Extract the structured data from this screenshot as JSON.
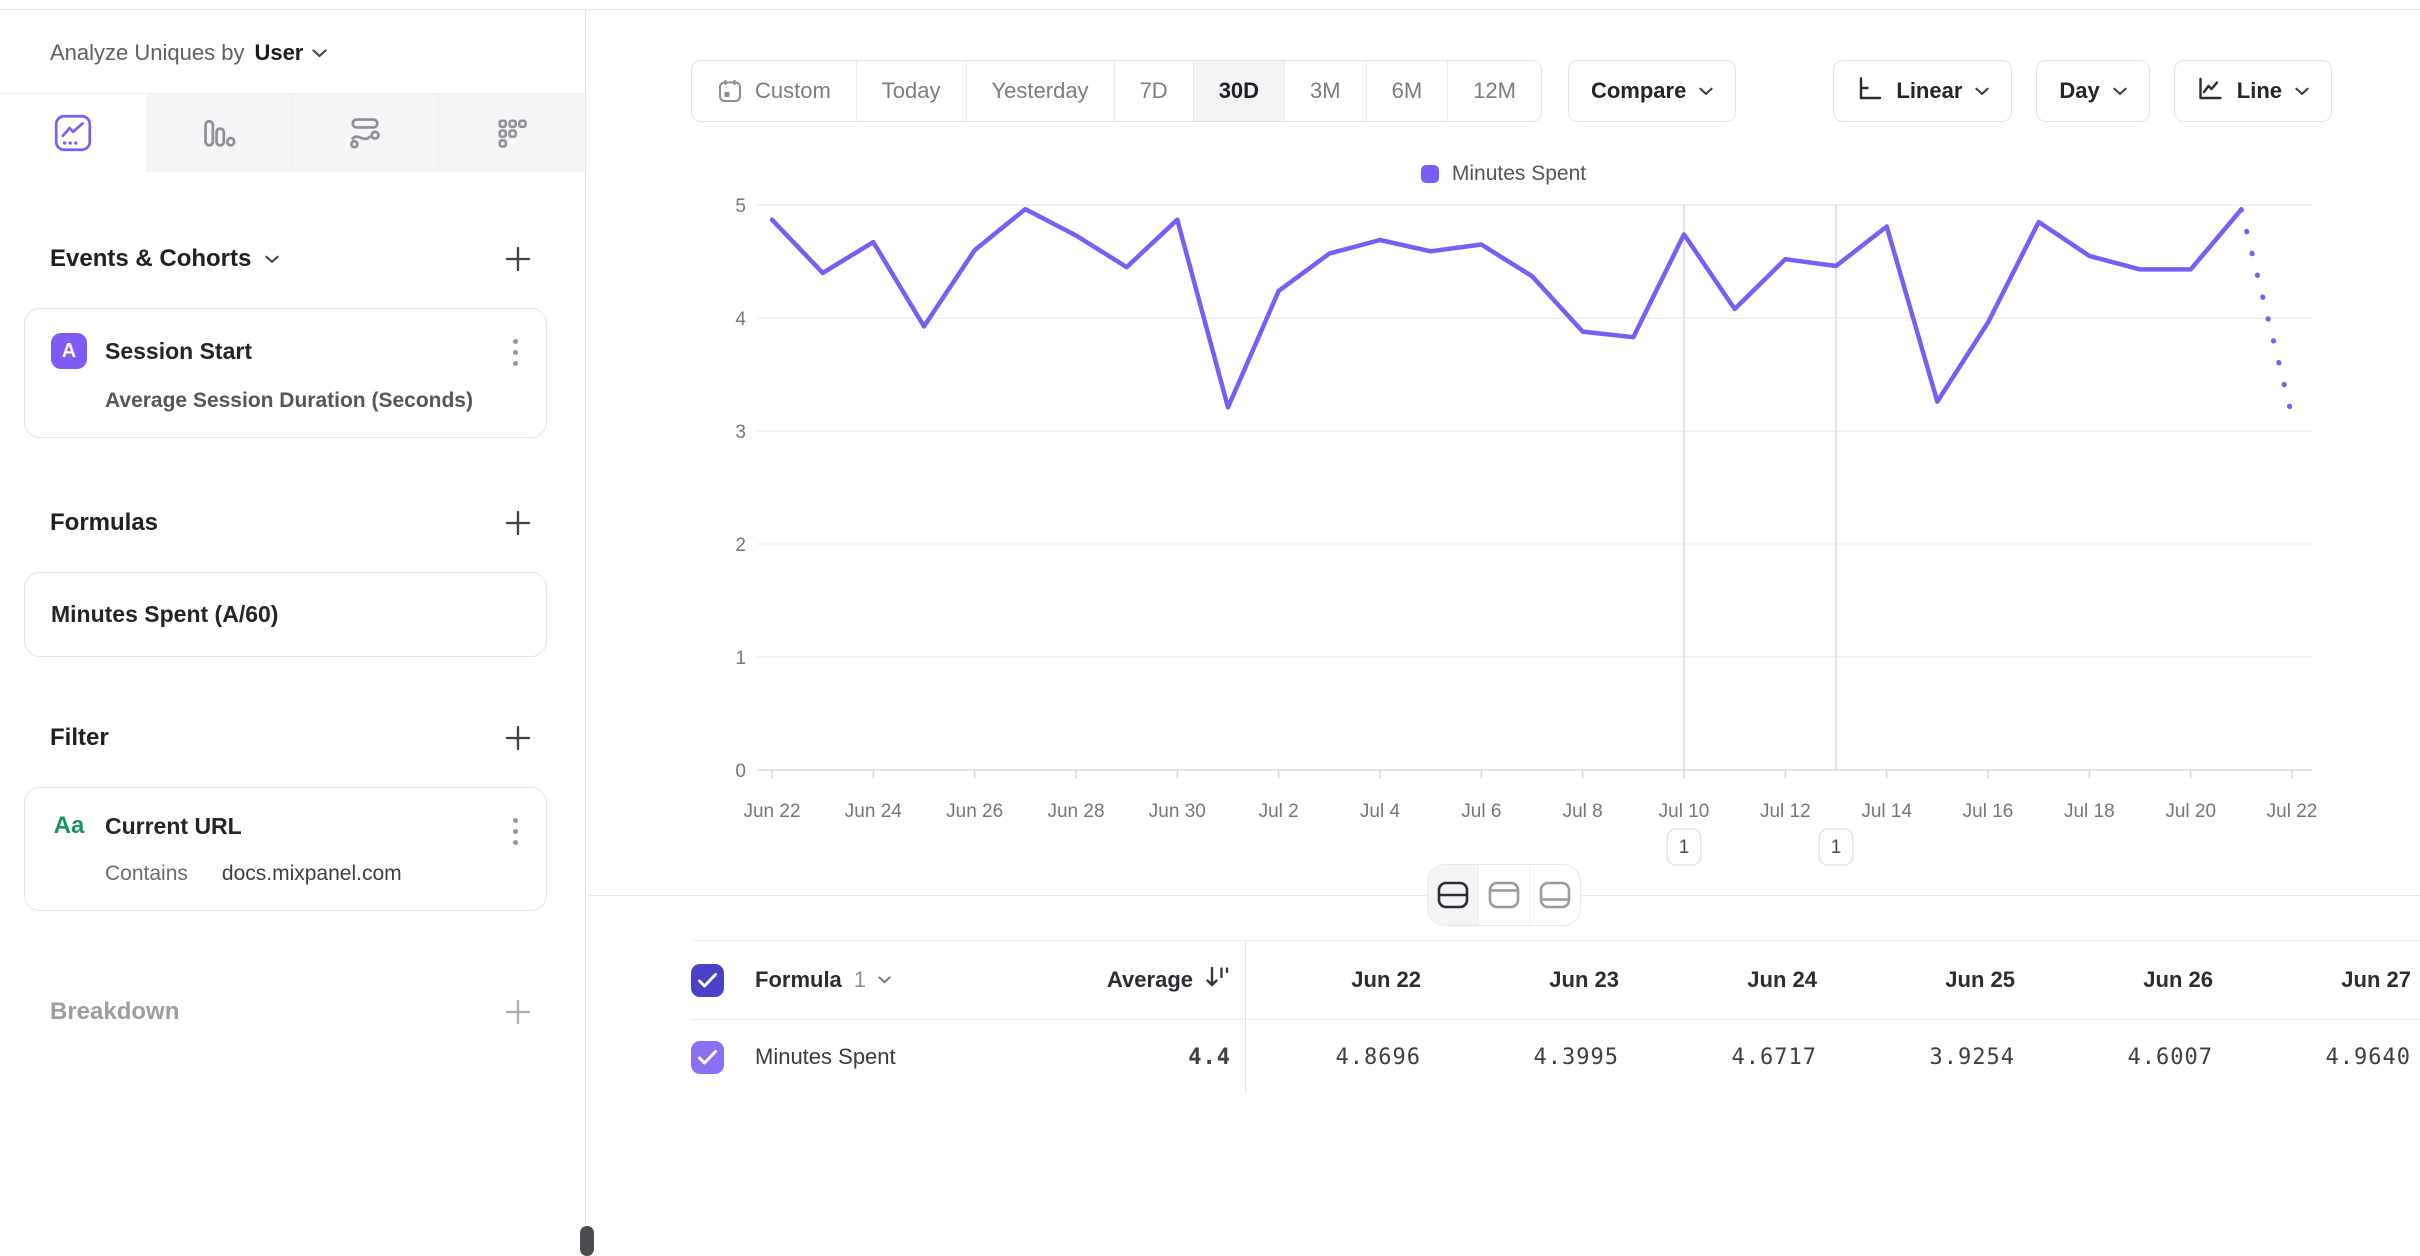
{
  "app": {
    "analyze_label": "Analyze Uniques by",
    "analyze_value": "User"
  },
  "sidebar": {
    "tabs": [
      {
        "icon": "insights-chart-icon",
        "active": true
      },
      {
        "icon": "bar-chart-icon",
        "active": false
      },
      {
        "icon": "flow-chart-icon",
        "active": false
      },
      {
        "icon": "funnel-dots-icon",
        "active": false
      }
    ],
    "events": {
      "title": "Events & Cohorts",
      "item": {
        "badge": "A",
        "title": "Session Start",
        "subtitle": "Average Session Duration (Seconds)"
      }
    },
    "formulas": {
      "title": "Formulas",
      "item": {
        "title": "Minutes Spent (A/60)"
      }
    },
    "filter": {
      "title": "Filter",
      "item": {
        "badge": "Aa",
        "title": "Current URL",
        "operator": "Contains",
        "value": "docs.mixpanel.com"
      }
    },
    "breakdown": {
      "title": "Breakdown"
    }
  },
  "toolbar": {
    "date_ranges": [
      "Custom",
      "Today",
      "Yesterday",
      "7D",
      "30D",
      "3M",
      "6M",
      "12M"
    ],
    "active_range": "30D",
    "compare_label": "Compare",
    "scale_label": "Linear",
    "interval_label": "Day",
    "chart_type_label": "Line"
  },
  "chart_data": {
    "type": "line",
    "x": [
      "Jun 22",
      "Jun 23",
      "Jun 24",
      "Jun 25",
      "Jun 26",
      "Jun 27",
      "Jun 28",
      "Jun 29",
      "Jun 30",
      "Jul 1",
      "Jul 2",
      "Jul 3",
      "Jul 4",
      "Jul 5",
      "Jul 6",
      "Jul 7",
      "Jul 8",
      "Jul 9",
      "Jul 10",
      "Jul 11",
      "Jul 12",
      "Jul 13",
      "Jul 14",
      "Jul 15",
      "Jul 16",
      "Jul 17",
      "Jul 18",
      "Jul 19",
      "Jul 20",
      "Jul 21",
      "Jul 22"
    ],
    "series": [
      {
        "name": "Minutes Spent",
        "values": [
          4.8696,
          4.3995,
          4.6717,
          3.9254,
          4.6007,
          4.964,
          4.73,
          4.45,
          4.87,
          3.21,
          4.24,
          4.57,
          4.69,
          4.59,
          4.65,
          4.37,
          3.88,
          3.83,
          4.74,
          4.08,
          4.52,
          4.46,
          4.81,
          3.26,
          3.96,
          4.85,
          4.55,
          4.43,
          4.43,
          4.96,
          3.13
        ]
      }
    ],
    "ylim": [
      0,
      5
    ],
    "yticks": [
      0,
      1,
      2,
      3,
      4,
      5
    ],
    "x_tick_every": 2,
    "grid": true,
    "legend": {
      "position": "top",
      "entries": [
        "Minutes Spent"
      ]
    },
    "line_color": "#7b5cf6",
    "last_segment_dotted": true,
    "annotations": [
      {
        "x": "Jul 10",
        "label": "1"
      },
      {
        "x": "Jul 13",
        "label": "1"
      }
    ]
  },
  "view_toggle": {
    "options": [
      "split-view",
      "chart-view",
      "table-view"
    ],
    "active": "split-view"
  },
  "table": {
    "group_label": "Formula",
    "group_index": "1",
    "average_header": "Average",
    "date_columns": [
      "Jun 22",
      "Jun 23",
      "Jun 24",
      "Jun 25",
      "Jun 26",
      "Jun 27"
    ],
    "row": {
      "name": "Minutes Spent",
      "average": "4.4",
      "values": [
        "4.8696",
        "4.3995",
        "4.6717",
        "3.9254",
        "4.6007",
        "4.9640"
      ]
    }
  },
  "colors": {
    "accent_purple": "#7b5cf6",
    "badge_purple": "#8159f5",
    "checkbox_header": "#4a41c8",
    "checkbox_row": "#8b70f5",
    "green_text": "#1c915c",
    "active_segment_bg": "#f3f3f5"
  }
}
